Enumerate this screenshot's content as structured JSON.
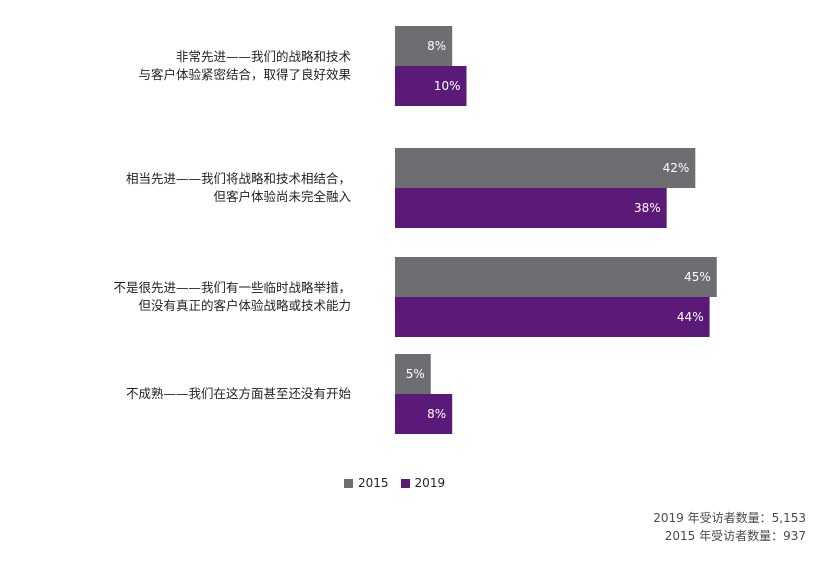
{
  "chart_data": {
    "type": "bar",
    "orientation": "horizontal",
    "categories": [
      [
        "非常先进——我们的战略和技术",
        "与客户体验紧密结合，取得了良好效果"
      ],
      [
        "相当先进——我们将战略和技术相结合，",
        "但客户体验尚未完全融入"
      ],
      [
        "不是很先进——我们有一些临时战略举措，",
        "但没有真正的客户体验战略或技术能力"
      ],
      [
        "不成熟——我们在这方面甚至还没有开始"
      ]
    ],
    "series": [
      {
        "name": "2015",
        "color": "#6d6e71",
        "values": [
          8,
          42,
          45,
          5
        ],
        "labels": [
          "8%",
          "42%",
          "45%",
          "5%"
        ]
      },
      {
        "name": "2019",
        "color": "#5c1a78",
        "values": [
          10,
          38,
          44,
          8
        ],
        "labels": [
          "10%",
          "38%",
          "44%",
          "8%"
        ]
      }
    ],
    "xlim": [
      0,
      50
    ],
    "grid": false,
    "legend_position": "bottom-center"
  },
  "notes": [
    "2019 年受访者数量：5,153",
    "2015 年受访者数量：937"
  ]
}
